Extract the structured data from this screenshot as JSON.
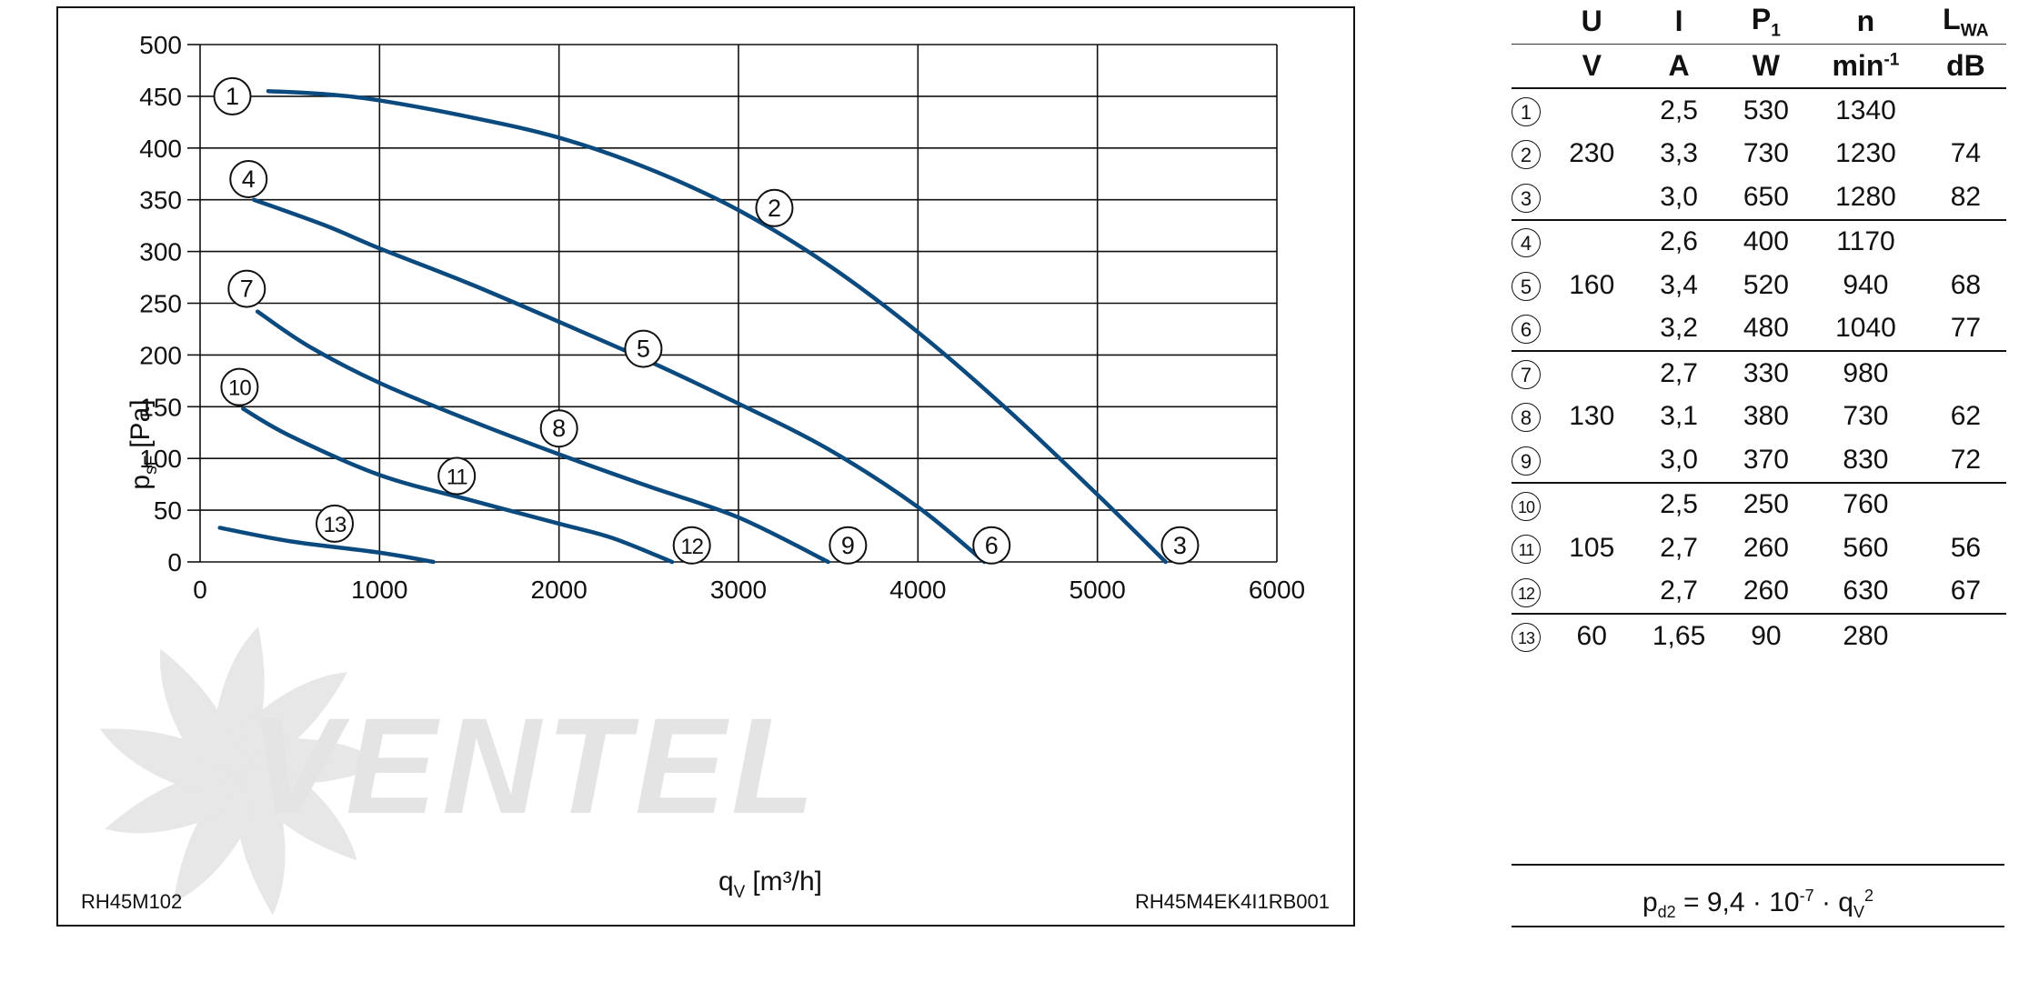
{
  "chart_data": {
    "type": "line",
    "xlabel": "q",
    "xlabel_sub": "V",
    "xlabel_unit": "[m³/h]",
    "ylabel": "p",
    "ylabel_sub": "sF",
    "ylabel_unit": "[Pa]",
    "xlim": [
      0,
      6000
    ],
    "ylim": [
      0,
      500
    ],
    "x_ticks": [
      "0",
      "1000",
      "2000",
      "3000",
      "4000",
      "5000",
      "6000"
    ],
    "y_ticks": [
      "0",
      "50",
      "100",
      "150",
      "200",
      "250",
      "300",
      "350",
      "400",
      "450",
      "500"
    ],
    "grid": true,
    "line_color": "#0b4a7e",
    "footer_left": "RH45M102",
    "footer_right": "RH45M4EK4I1RB001",
    "watermark": "VENTEL",
    "curves": [
      {
        "name": "1-2-3",
        "points": [
          [
            380,
            455
          ],
          [
            700,
            452
          ],
          [
            1000,
            446
          ],
          [
            1500,
            430
          ],
          [
            2000,
            410
          ],
          [
            2500,
            380
          ],
          [
            3000,
            340
          ],
          [
            3500,
            287
          ],
          [
            4000,
            222
          ],
          [
            4500,
            147
          ],
          [
            5000,
            65
          ],
          [
            5380,
            0
          ]
        ]
      },
      {
        "name": "4-5-6",
        "points": [
          [
            300,
            350
          ],
          [
            700,
            325
          ],
          [
            1000,
            303
          ],
          [
            1500,
            269
          ],
          [
            2000,
            232
          ],
          [
            2500,
            194
          ],
          [
            3000,
            153
          ],
          [
            3500,
            109
          ],
          [
            4000,
            53
          ],
          [
            4370,
            0
          ]
        ]
      },
      {
        "name": "7-8-9",
        "points": [
          [
            320,
            242
          ],
          [
            600,
            209
          ],
          [
            1000,
            173
          ],
          [
            1500,
            137
          ],
          [
            2000,
            104
          ],
          [
            2500,
            73
          ],
          [
            3000,
            43
          ],
          [
            3500,
            0
          ]
        ]
      },
      {
        "name": "10-11-12",
        "points": [
          [
            240,
            148
          ],
          [
            500,
            122
          ],
          [
            1000,
            84
          ],
          [
            1500,
            60
          ],
          [
            2000,
            37
          ],
          [
            2300,
            23
          ],
          [
            2630,
            0
          ]
        ]
      },
      {
        "name": "13",
        "points": [
          [
            110,
            33
          ],
          [
            500,
            20
          ],
          [
            1000,
            9
          ],
          [
            1300,
            0
          ]
        ]
      }
    ],
    "curve_labels": [
      {
        "label": "1",
        "x": 180,
        "y": 450
      },
      {
        "label": "2",
        "x": 3200,
        "y": 342
      },
      {
        "label": "3",
        "x": 5460,
        "y": 16
      },
      {
        "label": "4",
        "x": 270,
        "y": 370
      },
      {
        "label": "5",
        "x": 2470,
        "y": 206
      },
      {
        "label": "6",
        "x": 4410,
        "y": 16
      },
      {
        "label": "7",
        "x": 260,
        "y": 264
      },
      {
        "label": "8",
        "x": 2000,
        "y": 129
      },
      {
        "label": "9",
        "x": 3610,
        "y": 16
      },
      {
        "label": "10",
        "x": 220,
        "y": 169
      },
      {
        "label": "11",
        "x": 1430,
        "y": 83
      },
      {
        "label": "12",
        "x": 2740,
        "y": 16
      },
      {
        "label": "13",
        "x": 750,
        "y": 37
      }
    ]
  },
  "table": {
    "header": [
      "U",
      "I",
      "P",
      "n",
      "L"
    ],
    "header_sub": {
      "P": "1",
      "L": "WA"
    },
    "units": [
      "V",
      "A",
      "W",
      "min",
      "dB"
    ],
    "unit_sup": "-1",
    "groups": [
      {
        "voltage": "230",
        "rows": [
          {
            "idx": "1",
            "I": "2,5",
            "P": "530",
            "n": "1340",
            "L": ""
          },
          {
            "idx": "2",
            "I": "3,3",
            "P": "730",
            "n": "1230",
            "L": "74"
          },
          {
            "idx": "3",
            "I": "3,0",
            "P": "650",
            "n": "1280",
            "L": "82"
          }
        ]
      },
      {
        "voltage": "160",
        "rows": [
          {
            "idx": "4",
            "I": "2,6",
            "P": "400",
            "n": "1170",
            "L": ""
          },
          {
            "idx": "5",
            "I": "3,4",
            "P": "520",
            "n": "940",
            "L": "68"
          },
          {
            "idx": "6",
            "I": "3,2",
            "P": "480",
            "n": "1040",
            "L": "77"
          }
        ]
      },
      {
        "voltage": "130",
        "rows": [
          {
            "idx": "7",
            "I": "2,7",
            "P": "330",
            "n": "980",
            "L": ""
          },
          {
            "idx": "8",
            "I": "3,1",
            "P": "380",
            "n": "730",
            "L": "62"
          },
          {
            "idx": "9",
            "I": "3,0",
            "P": "370",
            "n": "830",
            "L": "72"
          }
        ]
      },
      {
        "voltage": "105",
        "rows": [
          {
            "idx": "10",
            "I": "2,5",
            "P": "250",
            "n": "760",
            "L": ""
          },
          {
            "idx": "11",
            "I": "2,7",
            "P": "260",
            "n": "560",
            "L": "56"
          },
          {
            "idx": "12",
            "I": "2,7",
            "P": "260",
            "n": "630",
            "L": "67"
          }
        ]
      },
      {
        "voltage": "60",
        "rows": [
          {
            "idx": "13",
            "I": "1,65",
            "P": "90",
            "n": "280",
            "L": ""
          }
        ]
      }
    ]
  },
  "formula": {
    "lhs": "p",
    "lhs_sub": "d2",
    "eq": " = 9,4 · 10",
    "exp": "-7",
    "mid": " · q",
    "q_sub": "V",
    "q_sup": "2"
  }
}
